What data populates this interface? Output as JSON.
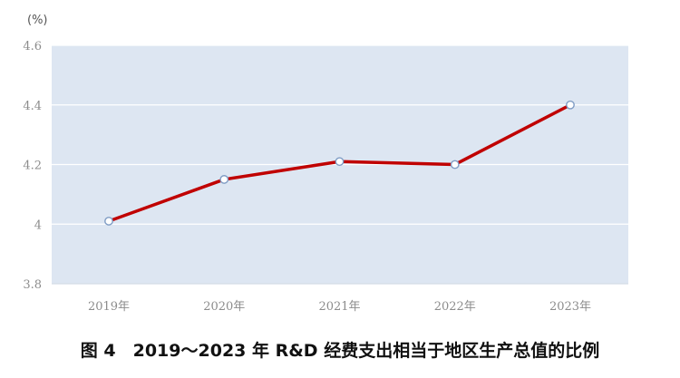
{
  "chart_data": {
    "type": "line",
    "title": "",
    "xlabel": "",
    "ylabel": "",
    "y_unit": "(%)",
    "categories": [
      "2019年",
      "2020年",
      "2021年",
      "2022年",
      "2023年"
    ],
    "series": [
      {
        "values": [
          4.01,
          4.15,
          4.21,
          4.2,
          4.4
        ],
        "color": "#c00000"
      }
    ],
    "ylim": [
      3.8,
      4.6
    ],
    "yticks": [
      "3.8",
      "4",
      "4.2",
      "4.4",
      "4.6"
    ],
    "grid": true,
    "legend": "none",
    "plot_background": "#dde6f2",
    "marker": "hollow-circle"
  },
  "caption": "图 4　2019～2023 年 R&D 经费支出相当于地区生产总值的比例"
}
